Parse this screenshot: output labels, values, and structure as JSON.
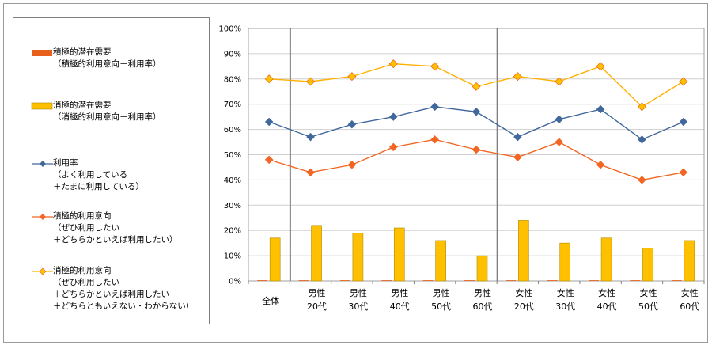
{
  "chart_data": {
    "type": "bar+line",
    "categories": [
      {
        "l1": "全体",
        "l2": ""
      },
      {
        "l1": "男性",
        "l2": "20代"
      },
      {
        "l1": "男性",
        "l2": "30代"
      },
      {
        "l1": "男性",
        "l2": "40代"
      },
      {
        "l1": "男性",
        "l2": "50代"
      },
      {
        "l1": "男性",
        "l2": "60代"
      },
      {
        "l1": "女性",
        "l2": "20代"
      },
      {
        "l1": "女性",
        "l2": "30代"
      },
      {
        "l1": "女性",
        "l2": "40代"
      },
      {
        "l1": "女性",
        "l2": "50代"
      },
      {
        "l1": "女性",
        "l2": "60代"
      }
    ],
    "ylim": [
      0,
      100
    ],
    "ytick_labels": [
      "0%",
      "10%",
      "20%",
      "30%",
      "40%",
      "50%",
      "60%",
      "70%",
      "80%",
      "90%",
      "100%"
    ],
    "bar_series": [
      {
        "name": "積極的潜在需要",
        "legend_lines": [
          "積極的潜在需要",
          "（積極的利用意向－利用率）"
        ],
        "color": "#E8601C",
        "values": [
          0,
          0,
          0,
          0,
          0,
          0,
          0,
          0,
          0,
          0,
          0
        ]
      },
      {
        "name": "消極的潜在需要",
        "legend_lines": [
          "消極的潜在需要",
          "（消極的利用意向－利用率）"
        ],
        "color": "#FFC000",
        "values": [
          17,
          22,
          19,
          21,
          16,
          10,
          24,
          15,
          17,
          13,
          16
        ]
      }
    ],
    "line_series": [
      {
        "name": "利用率",
        "legend_lines": [
          "利用率",
          "（よく利用している",
          "＋たまに利用している）"
        ],
        "color": "#41689C",
        "marker_fill": "#41689C",
        "values": [
          63,
          57,
          62,
          65,
          69,
          67,
          57,
          64,
          68,
          56,
          63
        ]
      },
      {
        "name": "積極的利用意向",
        "legend_lines": [
          "積極的利用意向",
          "（ぜひ利用したい",
          "＋どちらかといえば利用したい）"
        ],
        "color": "#F26522",
        "marker_fill": "#F26522",
        "values": [
          48,
          43,
          46,
          53,
          56,
          52,
          49,
          55,
          46,
          40,
          43
        ]
      },
      {
        "name": "消極的利用意向",
        "legend_lines": [
          "消極的利用意向",
          "（ぜひ利用したい",
          "＋どちらかといえば利用したい",
          "＋どちらともいえない・わからない）"
        ],
        "color": "#FFB000",
        "marker_fill": "#FFC000",
        "values": [
          80,
          79,
          81,
          86,
          85,
          77,
          81,
          79,
          85,
          69,
          79
        ]
      }
    ],
    "group_separators_after": [
      0,
      5
    ],
    "grid": true,
    "legend_position": "left"
  }
}
